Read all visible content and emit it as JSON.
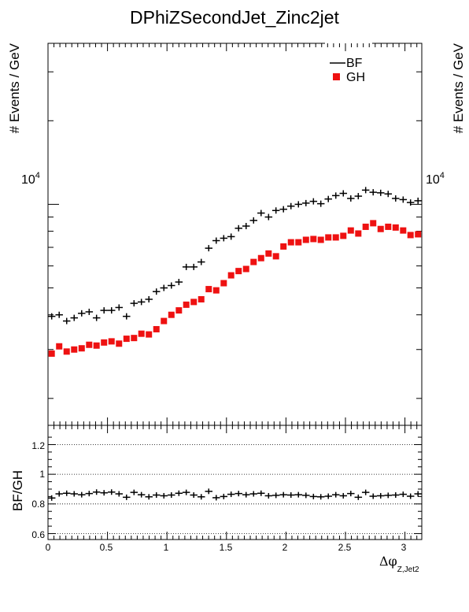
{
  "title": "DPhiZSecondJet_Zinc2jet",
  "colors": {
    "bf": "#000000",
    "gh": "#ee1111",
    "axis": "#000000"
  },
  "chart_data": [
    {
      "type": "scatter",
      "title": "DPhiZSecondJet_Zinc2jet",
      "ylabel": "# Events / GeV",
      "ylabel_right": "# Events / GeV",
      "yscale": "log",
      "ylim": [
        1600,
        38000
      ],
      "ytick_label": "10",
      "ytick_label_exp": "4",
      "ytick_label_right": "10",
      "ytick_label_right_exp": "4",
      "xlim": [
        0,
        3.1416
      ],
      "legend_position": "top-right",
      "legend": [
        {
          "label": "BF",
          "marker": "line"
        },
        {
          "label": "GH",
          "marker": "square"
        }
      ],
      "bin_width": 0.0628,
      "x": [
        0.031,
        0.094,
        0.157,
        0.22,
        0.283,
        0.346,
        0.408,
        0.471,
        0.534,
        0.597,
        0.66,
        0.723,
        0.785,
        0.848,
        0.911,
        0.974,
        1.037,
        1.1,
        1.162,
        1.225,
        1.288,
        1.351,
        1.414,
        1.477,
        1.539,
        1.602,
        1.665,
        1.728,
        1.791,
        1.854,
        1.916,
        1.979,
        2.042,
        2.105,
        2.168,
        2.231,
        2.293,
        2.356,
        2.419,
        2.482,
        2.545,
        2.608,
        2.67,
        2.733,
        2.796,
        2.859,
        2.922,
        2.985,
        3.047,
        3.11
      ],
      "series": [
        {
          "name": "BF",
          "values": [
            3950,
            4000,
            3800,
            3900,
            4050,
            4100,
            3900,
            4150,
            4150,
            4250,
            3950,
            4400,
            4450,
            4550,
            4850,
            5000,
            5100,
            5250,
            5950,
            5950,
            6200,
            6950,
            7400,
            7550,
            7650,
            8200,
            8350,
            8750,
            9300,
            9000,
            9500,
            9600,
            9850,
            10000,
            10100,
            10250,
            10050,
            10450,
            10750,
            10950,
            10500,
            10700,
            11250,
            11050,
            11000,
            10900,
            10500,
            10400,
            10150,
            10300
          ],
          "marker": "cross"
        },
        {
          "name": "GH",
          "values": [
            2900,
            3080,
            2950,
            3000,
            3030,
            3120,
            3100,
            3180,
            3210,
            3150,
            3280,
            3300,
            3420,
            3400,
            3550,
            3800,
            4000,
            4150,
            4350,
            4450,
            4550,
            4950,
            4900,
            5200,
            5550,
            5750,
            5850,
            6200,
            6400,
            6650,
            6500,
            7050,
            7300,
            7300,
            7450,
            7500,
            7450,
            7600,
            7600,
            7700,
            8050,
            7850,
            8300,
            8550,
            8150,
            8300,
            8250,
            8050,
            7750,
            7800
          ],
          "marker": "square"
        }
      ]
    },
    {
      "type": "scatter",
      "title": "",
      "ylabel": "BF/GH",
      "xlabel": "Δφ",
      "xlabel_sub": "Z,Jet2",
      "xlim": [
        0,
        3.1416
      ],
      "ylim": [
        0.56,
        1.33
      ],
      "yticks": [
        "0.6",
        "0.8",
        "1",
        "1.2"
      ],
      "xticks": [
        "0",
        "0.5",
        "1",
        "1.5",
        "2",
        "2.5",
        "3"
      ],
      "grid": "dotted horizontal at 0.6, 0.8, 1, 1.2",
      "x": [
        0.031,
        0.094,
        0.157,
        0.22,
        0.283,
        0.346,
        0.408,
        0.471,
        0.534,
        0.597,
        0.66,
        0.723,
        0.785,
        0.848,
        0.911,
        0.974,
        1.037,
        1.1,
        1.162,
        1.225,
        1.288,
        1.351,
        1.414,
        1.477,
        1.539,
        1.602,
        1.665,
        1.728,
        1.791,
        1.854,
        1.916,
        1.979,
        2.042,
        2.105,
        2.168,
        2.231,
        2.293,
        2.356,
        2.419,
        2.482,
        2.545,
        2.608,
        2.67,
        2.733,
        2.796,
        2.859,
        2.922,
        2.985,
        3.047,
        3.11
      ],
      "series": [
        {
          "name": "BF/GH",
          "values": [
            0.84,
            0.868,
            0.872,
            0.868,
            0.862,
            0.87,
            0.88,
            0.875,
            0.88,
            0.868,
            0.845,
            0.878,
            0.862,
            0.848,
            0.86,
            0.855,
            0.86,
            0.872,
            0.878,
            0.86,
            0.848,
            0.885,
            0.842,
            0.85,
            0.865,
            0.87,
            0.862,
            0.868,
            0.872,
            0.855,
            0.858,
            0.862,
            0.86,
            0.862,
            0.858,
            0.85,
            0.848,
            0.852,
            0.862,
            0.855,
            0.87,
            0.845,
            0.878,
            0.852,
            0.855,
            0.858,
            0.86,
            0.865,
            0.852,
            0.868
          ],
          "marker": "cross"
        }
      ]
    }
  ]
}
